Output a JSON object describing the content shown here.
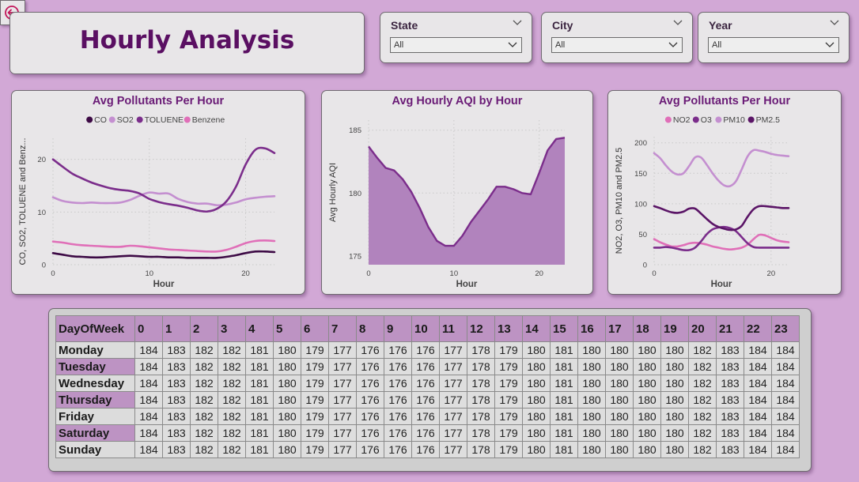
{
  "page": {
    "title": "Hourly Analysis"
  },
  "back_button": {
    "icon": "back-arrow-icon"
  },
  "colors": {
    "background": "#d2a8d6",
    "title": "#5a0f62",
    "accent_dark": "#3d0a45",
    "accent_purple": "#7b2d8b",
    "accent_light": "#c48fd0",
    "accent_pink": "#e06fb8"
  },
  "filters": [
    {
      "label": "State",
      "value": "All"
    },
    {
      "label": "City",
      "value": "All"
    },
    {
      "label": "Year",
      "value": "All"
    }
  ],
  "chart_data": [
    {
      "type": "line",
      "title": "Avg Pollutants Per Hour",
      "xlabel": "Hour",
      "ylabel": "CO, SO2, TOLUENE and Benz...",
      "x": [
        0,
        1,
        2,
        3,
        4,
        5,
        6,
        7,
        8,
        9,
        10,
        11,
        12,
        13,
        14,
        15,
        16,
        17,
        18,
        19,
        20,
        21,
        22,
        23
      ],
      "xticks": [
        0,
        10,
        20
      ],
      "yticks": [
        0,
        10,
        20
      ],
      "xlim": [
        0,
        23
      ],
      "ylim": [
        0,
        24
      ],
      "grid": true,
      "legend_position": "top",
      "series": [
        {
          "name": "CO",
          "color": "#3d0a45",
          "values": [
            2.2,
            1.9,
            1.6,
            1.5,
            1.4,
            1.4,
            1.5,
            1.6,
            1.7,
            1.6,
            1.5,
            1.5,
            1.4,
            1.4,
            1.3,
            1.3,
            1.3,
            1.3,
            1.5,
            1.8,
            2.2,
            2.5,
            2.5,
            2.4
          ]
        },
        {
          "name": "SO2",
          "color": "#c48fd0",
          "values": [
            12.8,
            12.1,
            11.8,
            11.7,
            11.8,
            11.7,
            11.7,
            11.8,
            12.3,
            13.1,
            13.7,
            13.5,
            13.5,
            12.5,
            11.9,
            11.6,
            11.6,
            11.3,
            11.4,
            11.8,
            12.4,
            12.7,
            12.9,
            13.0
          ]
        },
        {
          "name": "TOLUENE",
          "color": "#7b2d8b",
          "values": [
            20.0,
            18.6,
            17.3,
            16.4,
            15.6,
            15.0,
            14.5,
            14.2,
            14.0,
            13.5,
            12.5,
            11.9,
            11.5,
            11.2,
            10.8,
            10.3,
            10.1,
            10.6,
            12.0,
            14.8,
            19.0,
            21.8,
            22.1,
            21.2
          ]
        },
        {
          "name": "Benzene",
          "color": "#e06fb8",
          "values": [
            4.4,
            4.2,
            3.9,
            3.7,
            3.6,
            3.5,
            3.4,
            3.4,
            3.6,
            3.5,
            3.3,
            3.1,
            2.9,
            2.8,
            2.7,
            2.6,
            2.5,
            2.5,
            2.8,
            3.4,
            4.1,
            4.5,
            4.6,
            4.5
          ]
        }
      ]
    },
    {
      "type": "area",
      "title": "Avg Hourly AQI by Hour",
      "xlabel": "Hour",
      "ylabel": "Avg Hourly AQI",
      "x": [
        0,
        1,
        2,
        3,
        4,
        5,
        6,
        7,
        8,
        9,
        10,
        11,
        12,
        13,
        14,
        15,
        16,
        17,
        18,
        19,
        20,
        21,
        22,
        23
      ],
      "xticks": [
        0,
        10,
        20
      ],
      "yticks": [
        175,
        180,
        185
      ],
      "xlim": [
        0,
        23
      ],
      "ylim": [
        174.3,
        185.8
      ],
      "grid": true,
      "series": [
        {
          "name": "Avg Hourly AQI",
          "color": "#7b2d8b",
          "fill": "#b183bd",
          "values": [
            183.7,
            182.8,
            182.0,
            181.8,
            181.1,
            180.1,
            178.8,
            177.3,
            176.2,
            175.8,
            175.8,
            176.6,
            177.7,
            178.6,
            179.5,
            180.5,
            180.5,
            180.3,
            180.0,
            179.9,
            181.6,
            183.4,
            184.3,
            184.4
          ]
        }
      ]
    },
    {
      "type": "line",
      "title": "Avg Pollutants Per Hour",
      "xlabel": "Hour",
      "ylabel": "NO2, O3, PM10 and PM2.5",
      "x": [
        0,
        1,
        2,
        3,
        4,
        5,
        6,
        7,
        8,
        9,
        10,
        11,
        12,
        13,
        14,
        15,
        16,
        17,
        18,
        19,
        20,
        21,
        22,
        23
      ],
      "xticks": [
        0,
        20
      ],
      "yticks": [
        0,
        50,
        100,
        150,
        200
      ],
      "xlim": [
        0,
        23
      ],
      "ylim": [
        0,
        210
      ],
      "grid": true,
      "legend_position": "top",
      "series": [
        {
          "name": "NO2",
          "color": "#e06fb8",
          "values": [
            42,
            37,
            33,
            30,
            30,
            32,
            35,
            36,
            35,
            33,
            30,
            28,
            26,
            25,
            26,
            28,
            33,
            42,
            49,
            48,
            44,
            40,
            38,
            37
          ]
        },
        {
          "name": "O3",
          "color": "#7b2d8b",
          "values": [
            28,
            28,
            29,
            28,
            26,
            24,
            24,
            28,
            38,
            50,
            58,
            61,
            62,
            60,
            55,
            45,
            35,
            29,
            28,
            28,
            28,
            28,
            28,
            28
          ]
        },
        {
          "name": "PM10",
          "color": "#c48fd0",
          "values": [
            183,
            175,
            163,
            153,
            148,
            150,
            162,
            176,
            176,
            164,
            150,
            138,
            130,
            129,
            137,
            157,
            178,
            188,
            187,
            185,
            182,
            180,
            179,
            178
          ]
        },
        {
          "name": "PM2.5",
          "color": "#5a1466",
          "values": [
            96,
            93,
            89,
            86,
            85,
            87,
            92,
            92,
            84,
            75,
            67,
            62,
            59,
            57,
            58,
            64,
            79,
            91,
            96,
            96,
            95,
            94,
            93,
            93
          ]
        }
      ]
    },
    {
      "type": "table",
      "header": [
        "DayOfWeek",
        "0",
        "1",
        "2",
        "3",
        "4",
        "5",
        "6",
        "7",
        "8",
        "9",
        "10",
        "11",
        "12",
        "13",
        "14",
        "15",
        "16",
        "17",
        "18",
        "19",
        "20",
        "21",
        "22",
        "23"
      ],
      "rows": [
        {
          "day": "Monday",
          "values": [
            184,
            183,
            182,
            182,
            181,
            180,
            179,
            177,
            176,
            176,
            176,
            177,
            178,
            179,
            180,
            181,
            180,
            180,
            180,
            180,
            182,
            183,
            184,
            184
          ]
        },
        {
          "day": "Tuesday",
          "values": [
            184,
            183,
            182,
            182,
            181,
            180,
            179,
            177,
            176,
            176,
            176,
            177,
            178,
            179,
            180,
            181,
            180,
            180,
            180,
            180,
            182,
            183,
            184,
            184
          ]
        },
        {
          "day": "Wednesday",
          "values": [
            184,
            183,
            182,
            182,
            181,
            180,
            179,
            177,
            176,
            176,
            176,
            177,
            178,
            179,
            180,
            181,
            180,
            180,
            180,
            180,
            182,
            183,
            184,
            184
          ]
        },
        {
          "day": "Thursday",
          "values": [
            184,
            183,
            182,
            182,
            181,
            180,
            179,
            177,
            176,
            176,
            176,
            177,
            178,
            179,
            180,
            181,
            180,
            180,
            180,
            180,
            182,
            183,
            184,
            184
          ]
        },
        {
          "day": "Friday",
          "values": [
            184,
            183,
            182,
            182,
            181,
            180,
            179,
            177,
            176,
            176,
            176,
            177,
            178,
            179,
            180,
            181,
            180,
            180,
            180,
            180,
            182,
            183,
            184,
            184
          ]
        },
        {
          "day": "Saturday",
          "values": [
            184,
            183,
            182,
            182,
            181,
            180,
            179,
            177,
            176,
            176,
            176,
            177,
            178,
            179,
            180,
            181,
            180,
            180,
            180,
            180,
            182,
            183,
            184,
            184
          ]
        },
        {
          "day": "Sunday",
          "values": [
            184,
            183,
            182,
            182,
            181,
            180,
            179,
            177,
            176,
            176,
            176,
            177,
            178,
            179,
            180,
            181,
            180,
            180,
            180,
            180,
            182,
            183,
            184,
            184
          ]
        }
      ]
    }
  ]
}
